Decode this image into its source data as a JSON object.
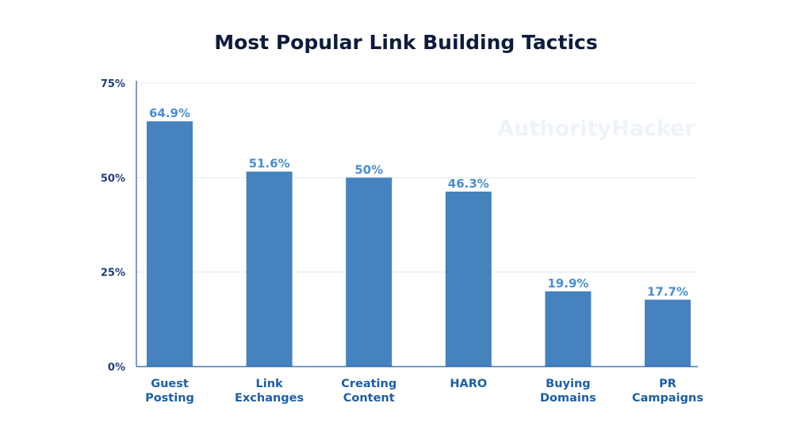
{
  "watermark": "AuthorityHacker",
  "colors": {
    "bar": "#4682be",
    "title": "#0e1b3d",
    "axis": "#1d5fa6",
    "grid": "#dfe9f4"
  },
  "chart_data": {
    "type": "bar",
    "title": "Most Popular Link Building Tactics",
    "xlabel": "",
    "ylabel": "",
    "ylim": [
      0,
      75
    ],
    "yticks": [
      0,
      25,
      50,
      75
    ],
    "ytick_labels": [
      "0%",
      "25%",
      "50%",
      "75%"
    ],
    "grid": true,
    "categories": [
      [
        "Guest",
        "Posting"
      ],
      [
        "Link",
        "Exchanges"
      ],
      [
        "Creating",
        "Content"
      ],
      [
        "HARO"
      ],
      [
        "Buying",
        "Domains"
      ],
      [
        "PR",
        "Campaigns"
      ]
    ],
    "values": [
      64.9,
      51.6,
      50,
      46.3,
      19.9,
      17.7
    ],
    "data_labels": [
      "64.9%",
      "51.6%",
      "50%",
      "46.3%",
      "19.9%",
      "17.7%"
    ]
  }
}
